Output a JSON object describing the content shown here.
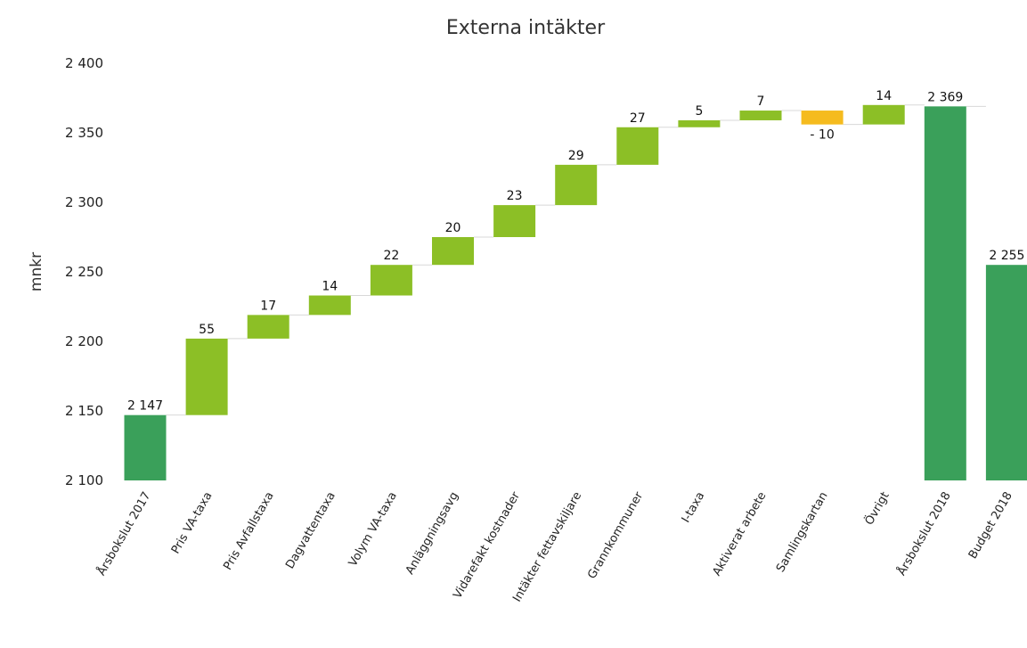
{
  "chart_data": {
    "type": "bar",
    "subtype": "waterfall",
    "title": "Externa intäkter",
    "xlabel": "",
    "ylabel": "mnkr",
    "ylim": [
      2100,
      2400
    ],
    "yticks": [
      2100,
      2150,
      2200,
      2250,
      2300,
      2350,
      2400
    ],
    "ytick_labels": [
      "2 100",
      "2 150",
      "2 200",
      "2 250",
      "2 300",
      "2 350",
      "2 400"
    ],
    "grid": false,
    "legend": "none",
    "categories": [
      "Årsbokslut 2017",
      "Pris VA-taxa",
      "Pris Avfallstaxa",
      "Dagvattentaxa",
      "Volym VA-taxa",
      "Anläggningsavg",
      "Vidarefakt kostnader",
      "Intäkter fettavskiljare",
      "Grannkommuner",
      "I-taxa",
      "Aktiverat arbete",
      "Samlingskartan",
      "Övrigt",
      "Årsbokslut 2018",
      "Budget 2018"
    ],
    "values": [
      2147,
      55,
      17,
      14,
      22,
      20,
      23,
      29,
      27,
      5,
      7,
      -10,
      14,
      2369,
      2255
    ],
    "kinds": [
      "total",
      "delta",
      "delta",
      "delta",
      "delta",
      "delta",
      "delta",
      "delta",
      "delta",
      "delta",
      "delta",
      "delta",
      "delta",
      "total",
      "total"
    ],
    "data_labels": [
      "2 147",
      "55",
      "17",
      "14",
      "22",
      "20",
      "23",
      "29",
      "27",
      "5",
      "7",
      "- 10",
      "14",
      "2 369",
      "2 255"
    ],
    "colors": {
      "total": "#3aa05a",
      "increase": "#8cbf26",
      "decrease": "#f5bb1e"
    }
  }
}
